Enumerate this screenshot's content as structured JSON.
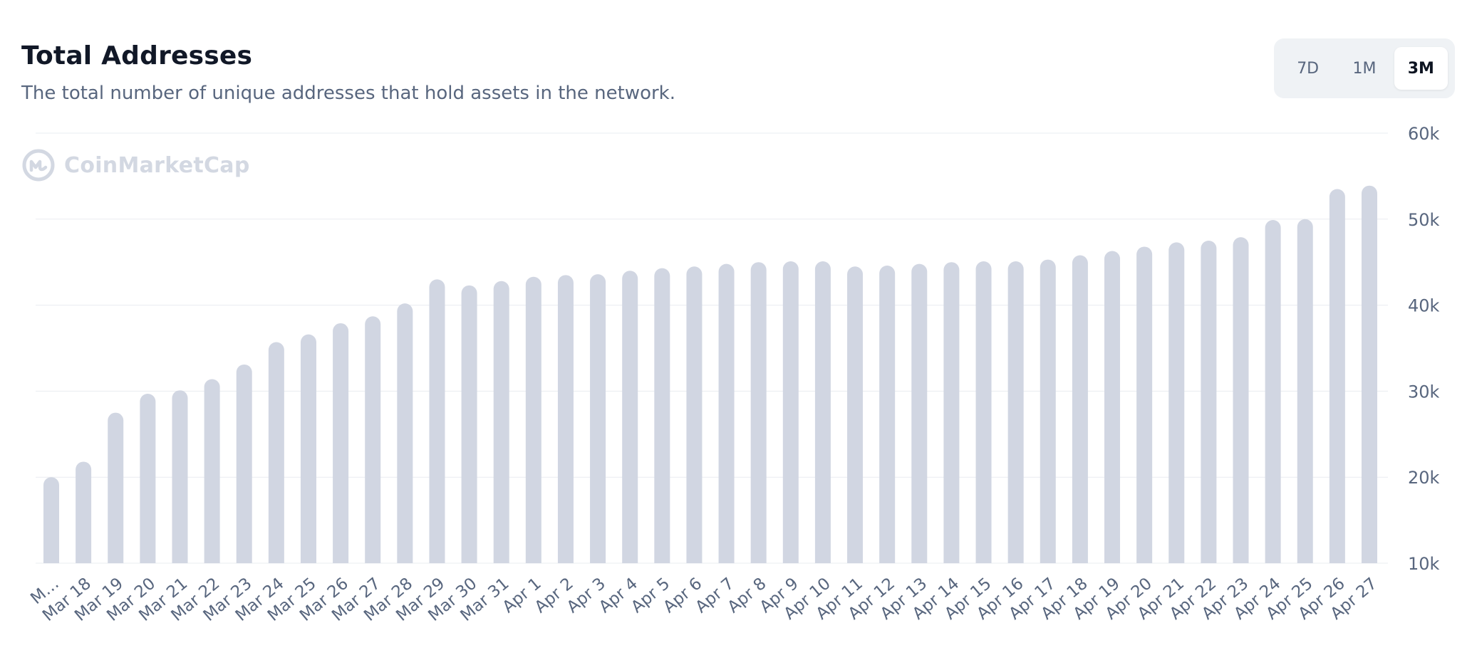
{
  "header": {
    "title": "Total Addresses",
    "subtitle": "The total number of unique addresses that hold assets in the network."
  },
  "range_selector": {
    "options": [
      "7D",
      "1M",
      "3M"
    ],
    "selected": "3M"
  },
  "watermark": {
    "text": "CoinMarketCap"
  },
  "colors": {
    "bar": "#d1d6e2",
    "grid": "#eaecf0",
    "tick_text": "#58667e"
  },
  "chart_data": {
    "type": "bar",
    "title": "Total Addresses",
    "xlabel": "",
    "ylabel": "",
    "ylim": [
      10000,
      60000
    ],
    "yticks": [
      10000,
      20000,
      30000,
      40000,
      50000,
      60000
    ],
    "ytick_labels": [
      "10k",
      "20k",
      "30k",
      "40k",
      "50k",
      "60k"
    ],
    "y_axis_position": "right",
    "grid": true,
    "categories": [
      "M…",
      "Mar 18",
      "Mar 19",
      "Mar 20",
      "Mar 21",
      "Mar 22",
      "Mar 23",
      "Mar 24",
      "Mar 25",
      "Mar 26",
      "Mar 27",
      "Mar 28",
      "Mar 29",
      "Mar 30",
      "Mar 31",
      "Apr 1",
      "Apr 2",
      "Apr 3",
      "Apr 4",
      "Apr 5",
      "Apr 6",
      "Apr 7",
      "Apr 8",
      "Apr 9",
      "Apr 10",
      "Apr 11",
      "Apr 12",
      "Apr 13",
      "Apr 14",
      "Apr 15",
      "Apr 16",
      "Apr 17",
      "Apr 18",
      "Apr 19",
      "Apr 20",
      "Apr 21",
      "Apr 22",
      "Apr 23",
      "Apr 24",
      "Apr 25",
      "Apr 26",
      "Apr 27"
    ],
    "values": [
      20000,
      21800,
      27500,
      29700,
      30100,
      31400,
      33100,
      35700,
      36600,
      37900,
      38700,
      40200,
      43000,
      42300,
      42800,
      43300,
      43500,
      43600,
      44000,
      44300,
      44500,
      44800,
      45000,
      45100,
      45100,
      44500,
      44600,
      44800,
      45000,
      45100,
      45100,
      45300,
      45800,
      46300,
      46800,
      47300,
      47500,
      47900,
      49900,
      50000,
      53500,
      53900
    ]
  }
}
